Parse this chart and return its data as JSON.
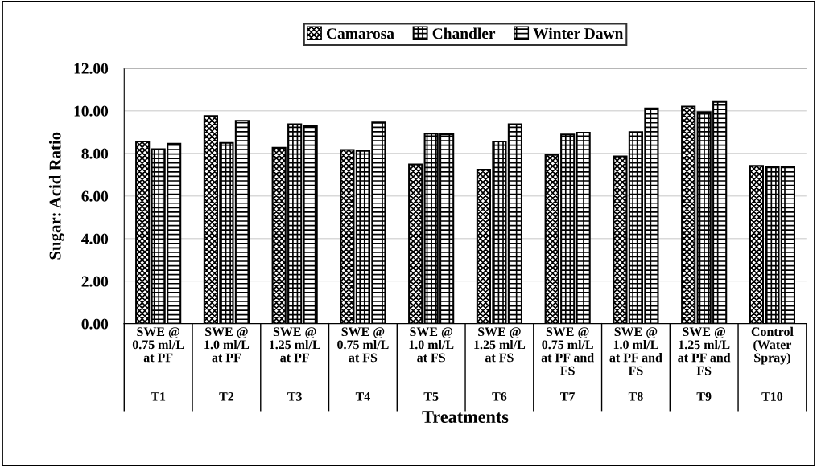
{
  "chart_data": {
    "type": "bar",
    "xlabel": "Treatments",
    "ylabel": "Sugar: Acid Ratio",
    "categories": [
      "SWE @\n0.75 ml/L\nat PF\nT1",
      "SWE @\n1.0 ml/L\nat PF\nT2",
      "SWE @\n1.25 ml/L\nat PF\nT3",
      "SWE @\n0.75 ml/L\nat FS\nT4",
      "SWE @\n1.0 ml/L\nat FS\nT5",
      "SWE @\n1.25 ml/L\nat FS\nT6",
      "SWE @\n0.75 ml/L\nat PF and\nFS\nT7",
      "SWE @\n1.0 ml/L\nat PF and\nFS\nT8",
      "SWE @\n1.25 ml/L\nat PF and\nFS\nT9",
      "Control\n(Water\nSpray)\nT10"
    ],
    "series": [
      {
        "name": "Camarosa",
        "color": "#000000",
        "values": [
          8.56,
          9.75,
          8.26,
          8.16,
          7.48,
          7.23,
          7.93,
          7.86,
          10.2,
          7.41
        ]
      },
      {
        "name": "Chandler",
        "color": "#000000",
        "values": [
          8.2,
          8.49,
          9.37,
          8.12,
          8.93,
          8.56,
          8.89,
          9.0,
          9.94,
          7.38
        ]
      },
      {
        "name": "Winter Dawn",
        "color": "#000000",
        "values": [
          8.45,
          9.53,
          9.27,
          9.45,
          8.9,
          9.37,
          8.97,
          10.11,
          10.42,
          7.38
        ]
      }
    ],
    "ylim": [
      0,
      12
    ],
    "yticks": [
      {
        "value": 0,
        "label": "0.00"
      },
      {
        "value": 2,
        "label": "2.00"
      },
      {
        "value": 4,
        "label": "4.00"
      },
      {
        "value": 6,
        "label": "6.00"
      },
      {
        "value": 8,
        "label": "8.00"
      },
      {
        "value": 10,
        "label": "10.00"
      },
      {
        "value": 12,
        "label": "12.00"
      }
    ],
    "grid": "y",
    "legend": "top"
  }
}
